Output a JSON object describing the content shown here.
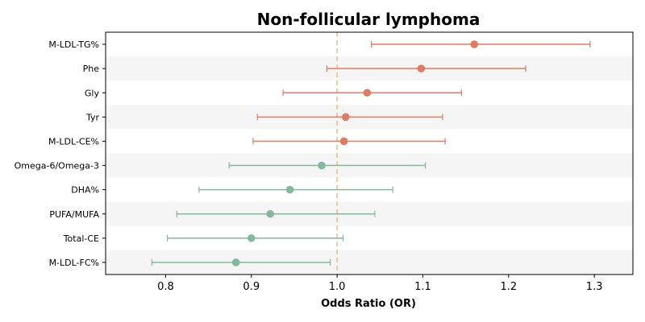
{
  "chart_data": {
    "type": "forest",
    "title": "Non-follicular lymphoma",
    "xlabel": "Odds Ratio (OR)",
    "ylabel": "",
    "xlim": [
      0.73,
      1.345
    ],
    "xticks": [
      0.8,
      0.9,
      1.0,
      1.1,
      1.2,
      1.3
    ],
    "xtick_labels": [
      "0.8",
      "0.9",
      "1.0",
      "1.1",
      "1.2",
      "1.3"
    ],
    "reference_line": 1.0,
    "grid": false,
    "colors": {
      "positive": "#e07b60",
      "negative": "#82b89c",
      "reference": "#f0c27a",
      "band": "#f5f5f5"
    },
    "items": [
      {
        "label": "M-LDL-TG%",
        "or": 1.16,
        "lower": 1.04,
        "upper": 1.295,
        "group": "positive"
      },
      {
        "label": "Phe",
        "or": 1.098,
        "lower": 0.988,
        "upper": 1.22,
        "group": "positive"
      },
      {
        "label": "Gly",
        "or": 1.035,
        "lower": 0.937,
        "upper": 1.145,
        "group": "positive"
      },
      {
        "label": "Tyr",
        "or": 1.01,
        "lower": 0.907,
        "upper": 1.123,
        "group": "positive"
      },
      {
        "label": "M-LDL-CE%",
        "or": 1.008,
        "lower": 0.902,
        "upper": 1.126,
        "group": "positive"
      },
      {
        "label": "Omega-6/Omega-3",
        "or": 0.982,
        "lower": 0.874,
        "upper": 1.103,
        "group": "negative"
      },
      {
        "label": "DHA%",
        "or": 0.945,
        "lower": 0.839,
        "upper": 1.065,
        "group": "negative"
      },
      {
        "label": "PUFA/MUFA",
        "or": 0.922,
        "lower": 0.813,
        "upper": 1.044,
        "group": "negative"
      },
      {
        "label": "Total-CE",
        "or": 0.9,
        "lower": 0.802,
        "upper": 1.007,
        "group": "negative"
      },
      {
        "label": "M-LDL-FC%",
        "or": 0.882,
        "lower": 0.784,
        "upper": 0.992,
        "group": "negative"
      }
    ]
  }
}
